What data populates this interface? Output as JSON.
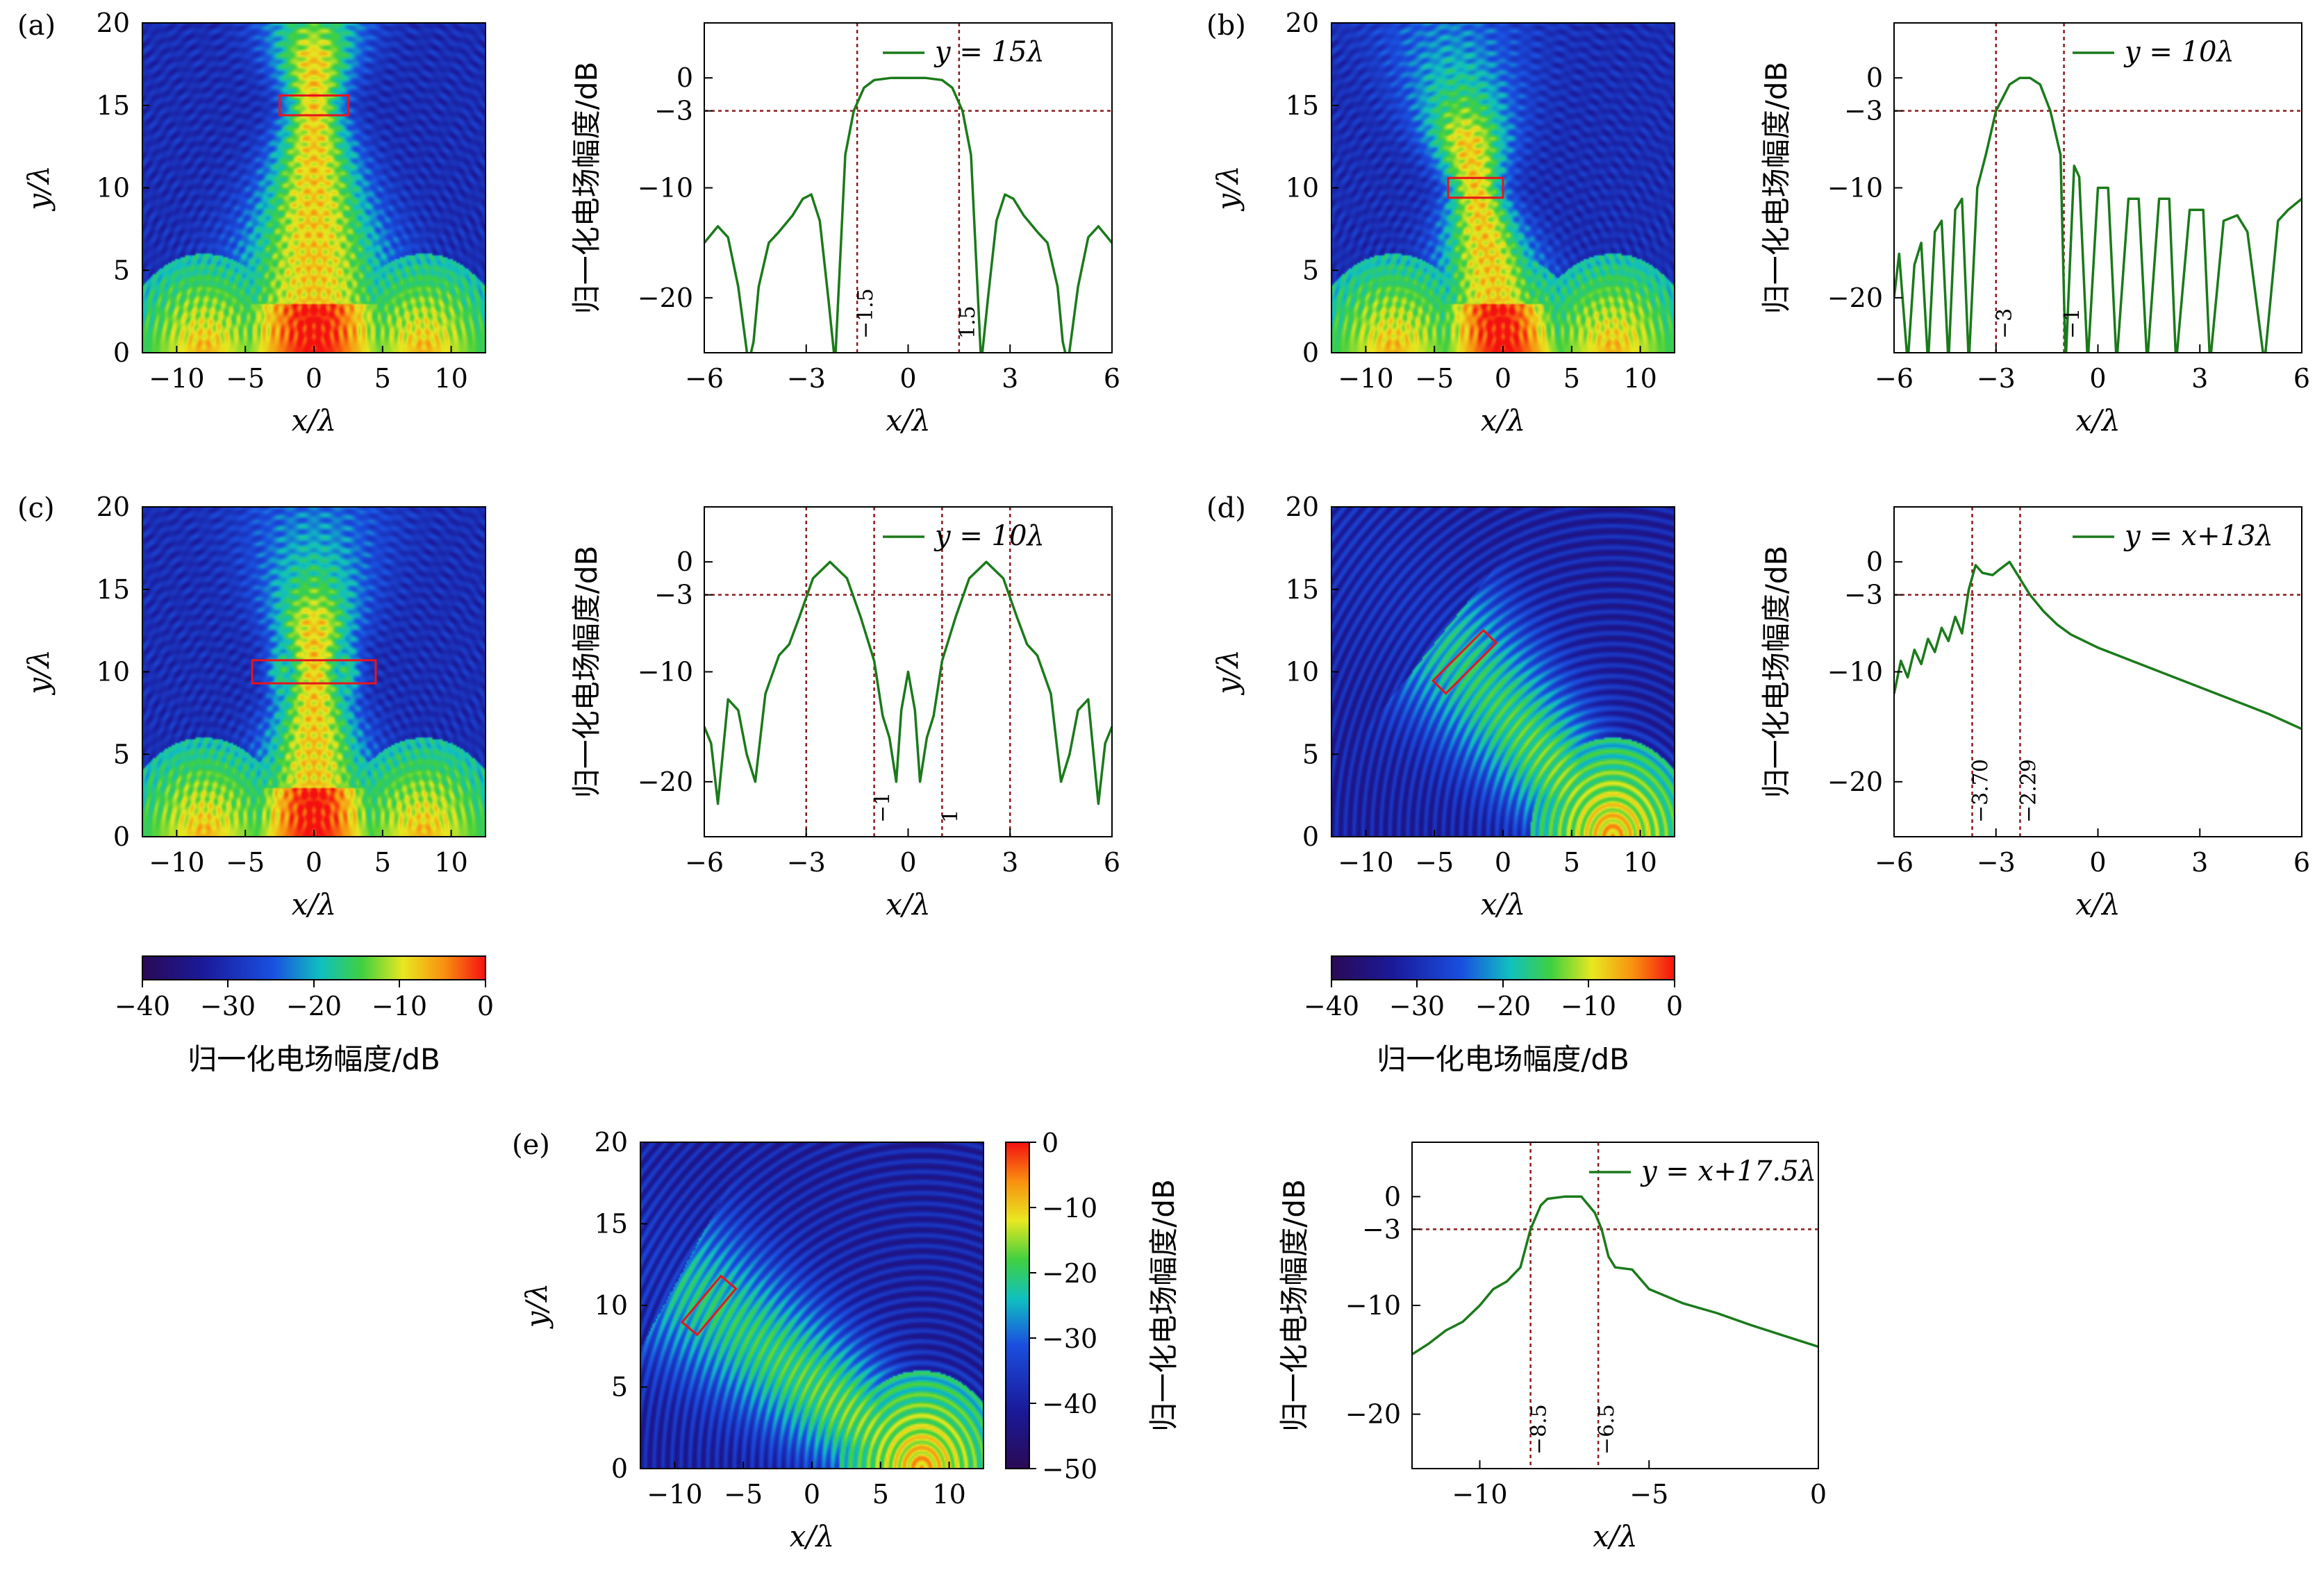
{
  "colorbars": [
    {
      "ticks": [
        "−40",
        "−30",
        "−20",
        "−10",
        "0"
      ],
      "label": "归一化电场幅度/dB"
    },
    {
      "ticks": [
        "−40",
        "−30",
        "−20",
        "−10",
        "0"
      ],
      "label": "归一化电场幅度/dB"
    },
    {
      "ticks": [
        "0",
        "−10",
        "−20",
        "−30",
        "−40",
        "−50"
      ],
      "label": "归一化电场幅度/dB"
    }
  ],
  "chart_data": [
    {
      "type": "heatmap",
      "panel": "(a)",
      "xlabel": "x/λ",
      "ylabel": "y/λ",
      "xlim": [
        -12.5,
        12.5
      ],
      "ylim": [
        0,
        20
      ],
      "xticks": [
        -10,
        -5,
        0,
        5,
        10
      ],
      "yticks": [
        0,
        5,
        10,
        15,
        20
      ],
      "color_range_db": [
        -40,
        0
      ],
      "sources_x": [
        -8,
        0,
        8
      ],
      "focus": {
        "x": 0,
        "y": 15
      },
      "highlight_box": {
        "center": [
          0,
          15
        ],
        "width": 5,
        "height": 1.2,
        "angle_deg": 0,
        "color": "#e8141c"
      }
    },
    {
      "type": "line",
      "panel": "(a)",
      "xlabel": "x/λ",
      "ylabel": "归一化电场幅度/dB",
      "xlim": [
        -6,
        6
      ],
      "ylim": [
        -25,
        5
      ],
      "xticks": [
        -6,
        -3,
        0,
        3,
        6
      ],
      "yticks": [
        0,
        -3,
        -10,
        -20
      ],
      "legend": "y = 15λ",
      "legend_position": "top-right",
      "line_color": "#1a7a1a",
      "series": [
        {
          "name": "y = 15λ",
          "x": [
            -6,
            -5.6,
            -5.3,
            -5,
            -4.7,
            -4.55,
            -4.4,
            -4.1,
            -3.8,
            -3.4,
            -3.1,
            -2.85,
            -2.6,
            -2.35,
            -2.15,
            -1.85,
            -1.6,
            -1.3,
            -1,
            -0.5,
            0,
            0.5,
            1,
            1.3,
            1.6,
            1.85,
            2.15,
            2.35,
            2.6,
            2.85,
            3.1,
            3.4,
            3.8,
            4.1,
            4.4,
            4.55,
            4.7,
            5,
            5.3,
            5.6,
            6
          ],
          "y": [
            -15,
            -13.5,
            -14.5,
            -19,
            -26,
            -24,
            -19,
            -15,
            -14,
            -12.5,
            -11,
            -10.6,
            -13,
            -20,
            -26,
            -7,
            -3,
            -0.9,
            -0.2,
            0,
            0,
            0,
            -0.2,
            -0.9,
            -3,
            -7,
            -26,
            -20,
            -13,
            -10.6,
            -11,
            -12.5,
            -14,
            -15,
            -19,
            -24,
            -26,
            -19,
            -14.5,
            -13.5,
            -15
          ]
        }
      ],
      "hlines": [
        -3
      ],
      "vlines": [
        {
          "x": -1.5,
          "label": "−1.5"
        },
        {
          "x": 1.5,
          "label": "1.5"
        }
      ]
    },
    {
      "type": "heatmap",
      "panel": "(b)",
      "xlabel": "x/λ",
      "ylabel": "y/λ",
      "xlim": [
        -12.5,
        12.5
      ],
      "ylim": [
        0,
        20
      ],
      "xticks": [
        -10,
        -5,
        0,
        5,
        10
      ],
      "yticks": [
        0,
        5,
        10,
        15,
        20
      ],
      "color_range_db": [
        -40,
        0
      ],
      "sources_x": [
        -8,
        0,
        8
      ],
      "focus": {
        "x": -2,
        "y": 10
      },
      "highlight_box": {
        "center": [
          -2,
          10
        ],
        "width": 4,
        "height": 1.2,
        "angle_deg": 0,
        "color": "#e8141c"
      }
    },
    {
      "type": "line",
      "panel": "(b)",
      "xlabel": "x/λ",
      "ylabel": "归一化电场幅度/dB",
      "xlim": [
        -6,
        6
      ],
      "ylim": [
        -25,
        5
      ],
      "xticks": [
        -6,
        -3,
        0,
        3,
        6
      ],
      "yticks": [
        0,
        -3,
        -10,
        -20
      ],
      "legend": "y = 10λ",
      "legend_position": "top-right",
      "line_color": "#1a7a1a",
      "series": [
        {
          "name": "y = 10λ",
          "x": [
            -6,
            -5.85,
            -5.6,
            -5.4,
            -5.2,
            -5,
            -4.8,
            -4.6,
            -4.4,
            -4.2,
            -4,
            -3.8,
            -3.55,
            -3.3,
            -3.0,
            -2.6,
            -2.3,
            -2,
            -1.7,
            -1.4,
            -1.1,
            -0.95,
            -0.7,
            -0.55,
            -0.3,
            0,
            0.3,
            0.55,
            0.9,
            1.2,
            1.45,
            1.8,
            2.1,
            2.3,
            2.7,
            3.1,
            3.3,
            3.7,
            4.1,
            4.4,
            4.9,
            5.3,
            5.6,
            6
          ],
          "y": [
            -20,
            -16,
            -26,
            -17,
            -15,
            -26,
            -14,
            -13,
            -26,
            -12,
            -11,
            -26,
            -10,
            -7,
            -3,
            -0.6,
            0,
            0,
            -0.6,
            -3,
            -7,
            -26,
            -8,
            -9,
            -26,
            -10,
            -10,
            -26,
            -11,
            -11,
            -26,
            -11,
            -11,
            -26,
            -12,
            -12,
            -26,
            -13,
            -12.5,
            -14,
            -26,
            -13,
            -12,
            -11
          ]
        }
      ],
      "hlines": [
        -3
      ],
      "vlines": [
        {
          "x": -3,
          "label": "−3"
        },
        {
          "x": -1,
          "label": "−1"
        }
      ]
    },
    {
      "type": "heatmap",
      "panel": "(c)",
      "xlabel": "x/λ",
      "ylabel": "y/λ",
      "xlim": [
        -12.5,
        12.5
      ],
      "ylim": [
        0,
        20
      ],
      "xticks": [
        -10,
        -5,
        0,
        5,
        10
      ],
      "yticks": [
        0,
        5,
        10,
        15,
        20
      ],
      "color_range_db": [
        -40,
        0
      ],
      "sources_x": [
        -8,
        0,
        8
      ],
      "focus": {
        "x": 0,
        "y": 10
      },
      "highlight_box": {
        "center": [
          0,
          10
        ],
        "width": 9,
        "height": 1.4,
        "angle_deg": 0,
        "color": "#e8141c"
      }
    },
    {
      "type": "line",
      "panel": "(c)",
      "xlabel": "x/λ",
      "ylabel": "归一化电场幅度/dB",
      "xlim": [
        -6,
        6
      ],
      "ylim": [
        -25,
        5
      ],
      "xticks": [
        -6,
        -3,
        0,
        3,
        6
      ],
      "yticks": [
        0,
        -3,
        -10,
        -20
      ],
      "legend": "y = 10λ",
      "legend_position": "top-right",
      "line_color": "#1a7a1a",
      "series": [
        {
          "name": "y = 10λ",
          "x": [
            -6,
            -5.8,
            -5.6,
            -5.3,
            -5,
            -4.75,
            -4.5,
            -4.2,
            -3.8,
            -3.5,
            -3.2,
            -2.8,
            -2.3,
            -1.8,
            -1.4,
            -1,
            -0.75,
            -0.55,
            -0.35,
            -0.2,
            0,
            0.2,
            0.35,
            0.55,
            0.75,
            1,
            1.4,
            1.8,
            2.3,
            2.8,
            3.2,
            3.5,
            3.8,
            4.2,
            4.5,
            4.75,
            5,
            5.3,
            5.6,
            5.8,
            6
          ],
          "y": [
            -15,
            -16.5,
            -22,
            -12.5,
            -13.5,
            -17.5,
            -20,
            -12,
            -8.5,
            -7.5,
            -5,
            -1.5,
            0,
            -1.5,
            -5,
            -9,
            -14,
            -16,
            -20,
            -13.5,
            -10,
            -13.5,
            -20,
            -16,
            -14,
            -9,
            -5,
            -1.5,
            0,
            -1.5,
            -5,
            -7.5,
            -8.5,
            -12,
            -20,
            -17.5,
            -13.5,
            -12.5,
            -22,
            -16.5,
            -15
          ]
        }
      ],
      "hlines": [
        -3
      ],
      "vlines": [
        {
          "x": -3,
          "label": ""
        },
        {
          "x": -1,
          "label": "−1"
        },
        {
          "x": 1,
          "label": "1"
        },
        {
          "x": 3,
          "label": ""
        }
      ]
    },
    {
      "type": "heatmap",
      "panel": "(d)",
      "xlabel": "x/λ",
      "ylabel": "y/λ",
      "xlim": [
        -12.5,
        12.5
      ],
      "ylim": [
        0,
        20
      ],
      "xticks": [
        -10,
        -5,
        0,
        5,
        10
      ],
      "yticks": [
        0,
        5,
        10,
        15,
        20
      ],
      "color_range_db": [
        -40,
        0
      ],
      "sources_x": [
        8
      ],
      "focus": {
        "x": -3,
        "y": 10.5
      },
      "highlight_box": {
        "center": [
          -2.8,
          10.6
        ],
        "width": 5.2,
        "height": 1.1,
        "angle_deg": 45,
        "color": "#e8141c"
      }
    },
    {
      "type": "line",
      "panel": "(d)",
      "xlabel": "x/λ",
      "ylabel": "归一化电场幅度/dB",
      "xlim": [
        -6,
        6
      ],
      "ylim": [
        -25,
        5
      ],
      "xticks": [
        -6,
        -3,
        0,
        3,
        6
      ],
      "yticks": [
        0,
        -3,
        -10,
        -20
      ],
      "legend": "y = x+13λ",
      "legend_position": "top-right",
      "line_color": "#1a7a1a",
      "series": [
        {
          "name": "y = x+13λ",
          "x": [
            -6,
            -5.8,
            -5.6,
            -5.4,
            -5.2,
            -5,
            -4.8,
            -4.6,
            -4.4,
            -4.2,
            -4,
            -3.8,
            -3.6,
            -3.4,
            -3.1,
            -2.9,
            -2.6,
            -2.3,
            -2,
            -1.6,
            -1.2,
            -0.8,
            0,
            1,
            2,
            3,
            4,
            5,
            6
          ],
          "y": [
            -12,
            -9,
            -10.5,
            -8,
            -9.3,
            -7,
            -8.2,
            -6,
            -7.2,
            -5,
            -6.5,
            -2.5,
            -0.3,
            -1,
            -1.2,
            -0.7,
            0,
            -1.5,
            -3,
            -4.5,
            -5.7,
            -6.6,
            -7.8,
            -9,
            -10.2,
            -11.4,
            -12.6,
            -13.8,
            -15.2
          ]
        }
      ],
      "hlines": [
        -3
      ],
      "vlines": [
        {
          "x": -3.7,
          "label": "−3.70"
        },
        {
          "x": -2.29,
          "label": "−2.29"
        }
      ]
    },
    {
      "type": "heatmap",
      "panel": "(e)",
      "xlabel": "x/λ",
      "ylabel": "y/λ",
      "xlim": [
        -12.5,
        12.5
      ],
      "ylim": [
        0,
        20
      ],
      "xticks": [
        -10,
        -5,
        0,
        5,
        10
      ],
      "yticks": [
        0,
        5,
        10,
        15,
        20
      ],
      "color_range_db": [
        -50,
        0
      ],
      "sources_x": [
        8
      ],
      "focus": {
        "x": -7.5,
        "y": 10
      },
      "highlight_box": {
        "center": [
          -7.5,
          10
        ],
        "width": 4.4,
        "height": 1.2,
        "angle_deg": 50,
        "color": "#e8141c"
      }
    },
    {
      "type": "line",
      "panel": "(e)",
      "xlabel": "x/λ",
      "ylabel": "归一化电场幅度/dB",
      "xlim": [
        -12,
        0
      ],
      "ylim": [
        -25,
        5
      ],
      "xticks": [
        -10,
        -5,
        0
      ],
      "yticks": [
        0,
        -3,
        -10,
        -20
      ],
      "legend": "y = x+17.5λ",
      "legend_position": "top-right",
      "line_color": "#1a7a1a",
      "series": [
        {
          "name": "y = x+17.5λ",
          "x": [
            -12,
            -11.5,
            -11,
            -10.5,
            -10,
            -9.6,
            -9.2,
            -8.8,
            -8.5,
            -8.2,
            -8,
            -7.5,
            -7,
            -6.6,
            -6.4,
            -6.2,
            -6,
            -5.5,
            -5,
            -4,
            -3,
            -2,
            -1,
            0
          ],
          "y": [
            -14.5,
            -13.5,
            -12.3,
            -11.5,
            -10,
            -8.5,
            -7.8,
            -6.5,
            -3,
            -0.8,
            -0.2,
            0,
            0,
            -1.5,
            -3,
            -5.5,
            -6.5,
            -6.7,
            -8.5,
            -9.8,
            -10.7,
            -11.8,
            -12.8,
            -13.8
          ]
        }
      ],
      "hlines": [
        -3
      ],
      "vlines": [
        {
          "x": -8.5,
          "label": "−8.5"
        },
        {
          "x": -6.5,
          "label": "−6.5"
        }
      ]
    }
  ]
}
